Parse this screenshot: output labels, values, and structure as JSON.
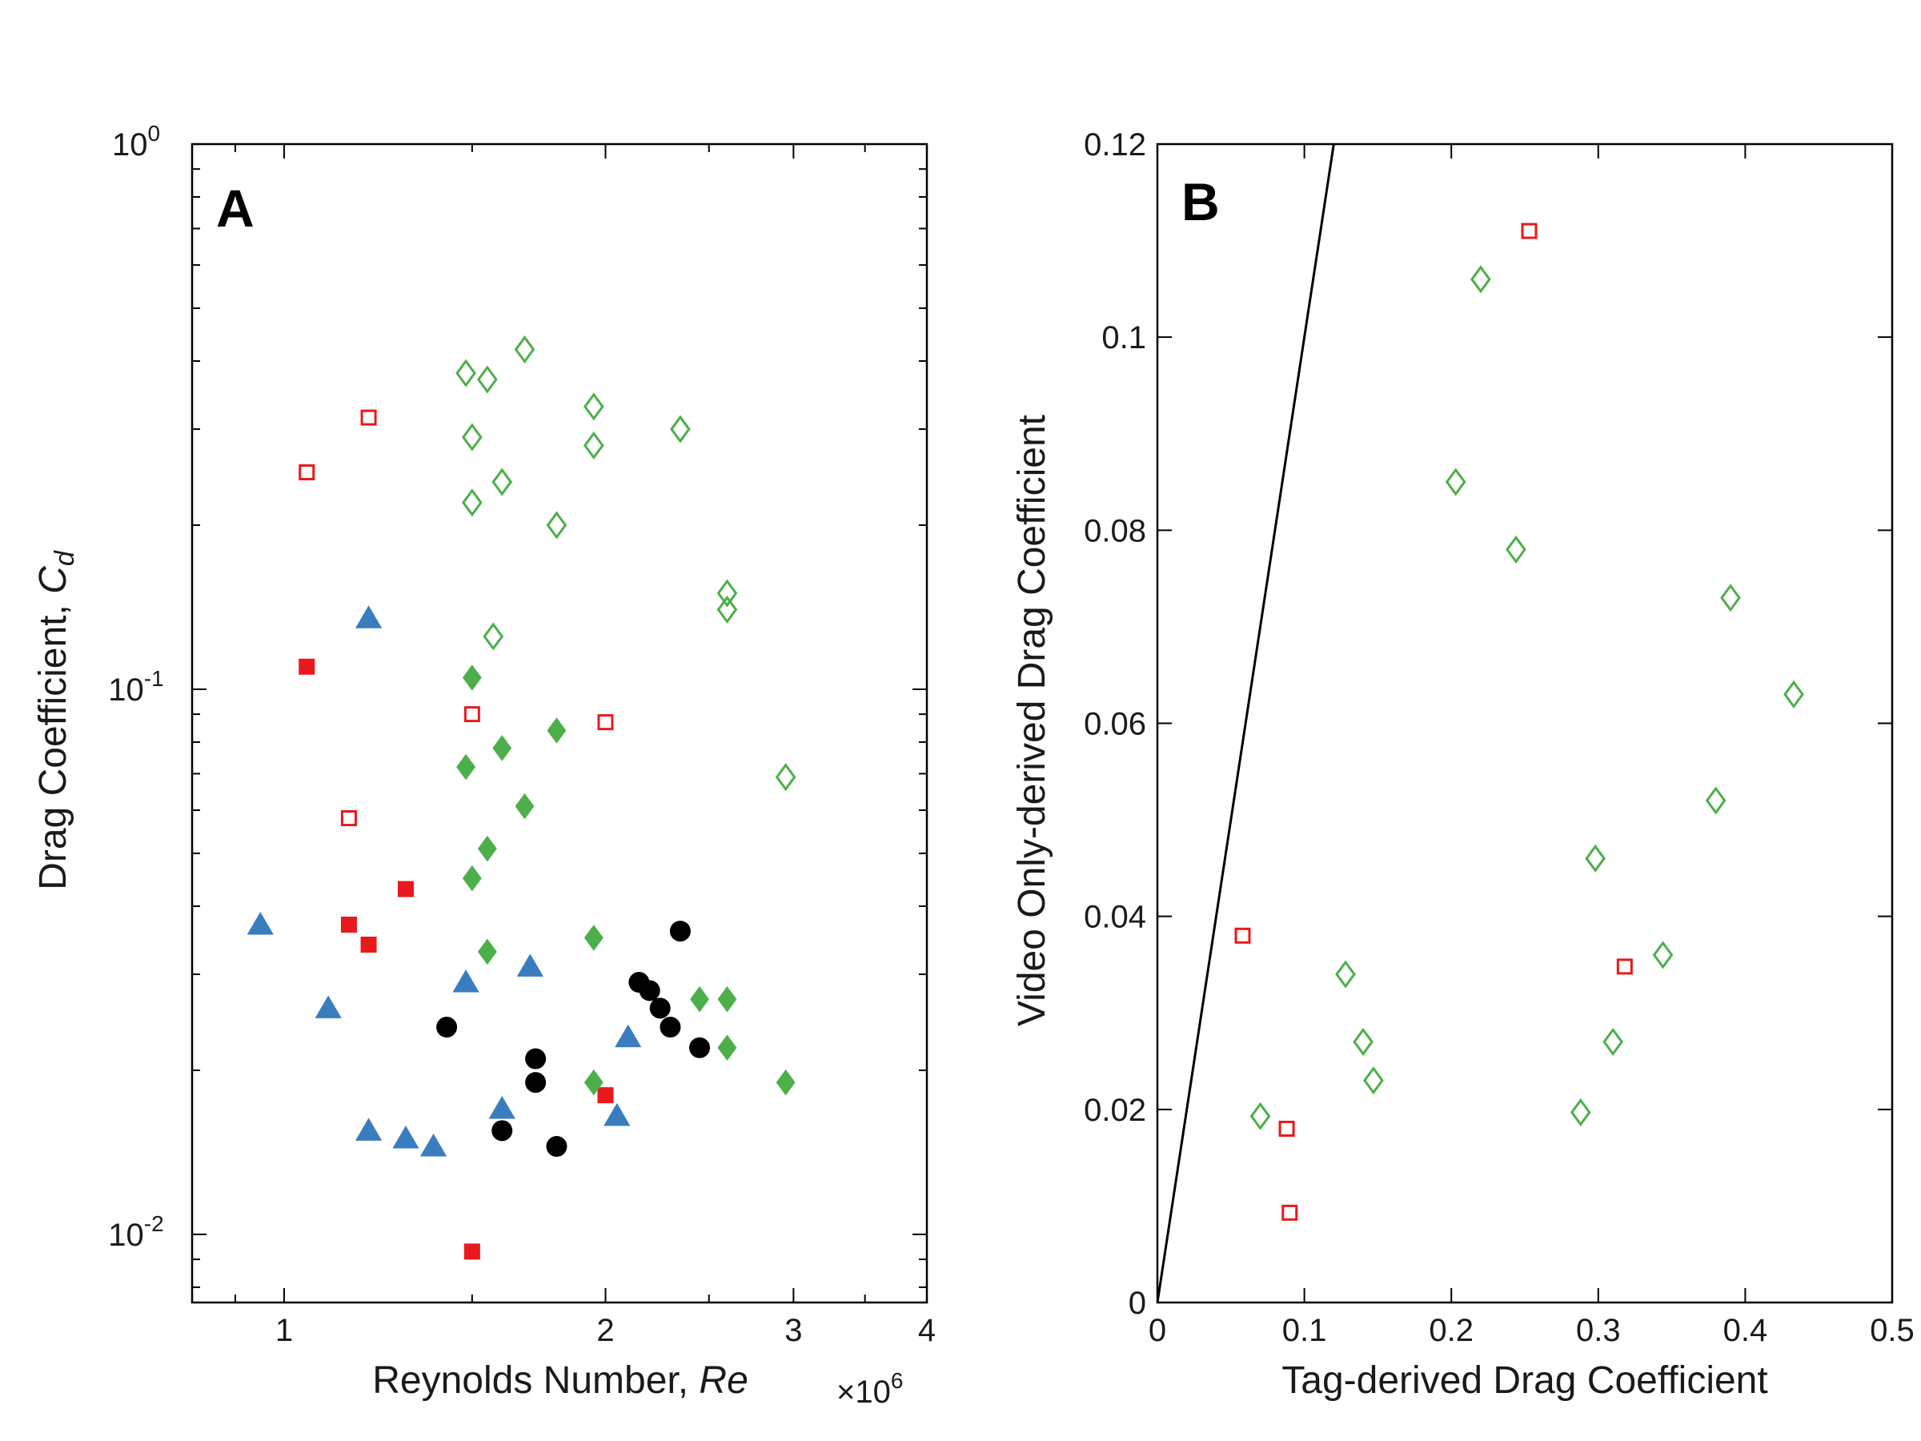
{
  "chart_data": [
    {
      "panel": "A",
      "type": "scatter",
      "xlabel": "Reynolds Number, ",
      "xlabel_var": "Re",
      "x_multiplier": "×10",
      "x_multiplier_exp": "6",
      "ylabel": "Drag Coefficient, ",
      "ylabel_var": "C",
      "ylabel_sub": "d",
      "xscale": "log",
      "yscale": "log",
      "xlim": [
        0.82,
        4
      ],
      "ylim": [
        0.0075,
        1
      ],
      "x_ticks": [
        1,
        2,
        3,
        4
      ],
      "x_tick_labels": [
        "1",
        "2",
        "3",
        "4"
      ],
      "y_ticks": [
        0.01,
        0.1,
        1
      ],
      "y_tick_labels": [
        {
          "base": "10",
          "exp": "-2"
        },
        {
          "base": "10",
          "exp": "-1"
        },
        {
          "base": "10",
          "exp": "0"
        }
      ],
      "grid": false,
      "colors": {
        "red": "#e8191c",
        "green": "#4daf4a",
        "blue": "#3a7dbf",
        "black": "#000000"
      },
      "series": [
        {
          "marker": "square-open",
          "color": "#e8191c",
          "points": [
            [
              1.05,
              0.25
            ],
            [
              1.2,
              0.315
            ],
            [
              1.5,
              0.09
            ],
            [
              1.15,
              0.058
            ],
            [
              2.0,
              0.087
            ]
          ]
        },
        {
          "marker": "square-filled",
          "color": "#e8191c",
          "points": [
            [
              1.05,
              0.11
            ],
            [
              1.3,
              0.043
            ],
            [
              1.15,
              0.037
            ],
            [
              1.2,
              0.034
            ],
            [
              2.0,
              0.018
            ],
            [
              1.5,
              0.0093
            ]
          ]
        },
        {
          "marker": "diamond-open",
          "color": "#4daf4a",
          "points": [
            [
              1.48,
              0.38
            ],
            [
              1.55,
              0.37
            ],
            [
              1.68,
              0.42
            ],
            [
              1.95,
              0.33
            ],
            [
              1.5,
              0.29
            ],
            [
              1.95,
              0.28
            ],
            [
              2.35,
              0.3
            ],
            [
              1.6,
              0.24
            ],
            [
              1.5,
              0.22
            ],
            [
              1.8,
              0.2
            ],
            [
              2.6,
              0.15
            ],
            [
              2.6,
              0.14
            ],
            [
              1.57,
              0.125
            ],
            [
              2.95,
              0.069
            ]
          ]
        },
        {
          "marker": "diamond-filled",
          "color": "#4daf4a",
          "points": [
            [
              1.5,
              0.105
            ],
            [
              1.8,
              0.084
            ],
            [
              1.6,
              0.078
            ],
            [
              1.48,
              0.072
            ],
            [
              1.68,
              0.061
            ],
            [
              1.55,
              0.051
            ],
            [
              1.5,
              0.045
            ],
            [
              1.95,
              0.035
            ],
            [
              1.55,
              0.033
            ],
            [
              2.45,
              0.027
            ],
            [
              2.6,
              0.027
            ],
            [
              2.6,
              0.022
            ],
            [
              1.95,
              0.019
            ],
            [
              2.95,
              0.019
            ]
          ]
        },
        {
          "marker": "triangle-filled",
          "color": "#3a7dbf",
          "points": [
            [
              1.2,
              0.135
            ],
            [
              0.95,
              0.037
            ],
            [
              1.1,
              0.026
            ],
            [
              1.48,
              0.029
            ],
            [
              1.7,
              0.031
            ],
            [
              2.1,
              0.023
            ],
            [
              1.6,
              0.017
            ],
            [
              2.05,
              0.0165
            ],
            [
              1.2,
              0.0155
            ],
            [
              1.3,
              0.015
            ],
            [
              1.38,
              0.0145
            ]
          ]
        },
        {
          "marker": "circle-filled",
          "color": "#000000",
          "points": [
            [
              2.35,
              0.036
            ],
            [
              2.15,
              0.029
            ],
            [
              2.2,
              0.028
            ],
            [
              2.25,
              0.026
            ],
            [
              1.42,
              0.024
            ],
            [
              2.3,
              0.024
            ],
            [
              2.45,
              0.022
            ],
            [
              1.72,
              0.021
            ],
            [
              1.72,
              0.019
            ],
            [
              1.6,
              0.0155
            ],
            [
              1.8,
              0.0145
            ]
          ]
        }
      ]
    },
    {
      "panel": "B",
      "type": "scatter",
      "xlabel": "Tag-derived Drag Coefficient",
      "ylabel": "Video Only-derived Drag Coefficient",
      "xlim": [
        0,
        0.5
      ],
      "ylim": [
        0,
        0.12
      ],
      "x_ticks": [
        0,
        0.1,
        0.2,
        0.3,
        0.4,
        0.5
      ],
      "x_tick_labels": [
        "0",
        "0.1",
        "0.2",
        "0.3",
        "0.4",
        "0.5"
      ],
      "y_ticks": [
        0,
        0.02,
        0.04,
        0.06,
        0.08,
        0.1,
        0.12
      ],
      "y_tick_labels": [
        "0",
        "0.02",
        "0.04",
        "0.06",
        "0.08",
        "0.1",
        "0.12"
      ],
      "grid": false,
      "reference_line": {
        "points": [
          [
            0,
            0
          ],
          [
            0.12,
            0.12
          ]
        ],
        "color": "#000000"
      },
      "series": [
        {
          "marker": "square-open",
          "color": "#e8191c",
          "points": [
            [
              0.253,
              0.111
            ],
            [
              0.058,
              0.038
            ],
            [
              0.088,
              0.018
            ],
            [
              0.09,
              0.0093
            ],
            [
              0.318,
              0.0348
            ]
          ]
        },
        {
          "marker": "diamond-open",
          "color": "#4daf4a",
          "points": [
            [
              0.22,
              0.106
            ],
            [
              0.203,
              0.085
            ],
            [
              0.244,
              0.078
            ],
            [
              0.39,
              0.073
            ],
            [
              0.433,
              0.063
            ],
            [
              0.38,
              0.052
            ],
            [
              0.298,
              0.046
            ],
            [
              0.344,
              0.036
            ],
            [
              0.128,
              0.034
            ],
            [
              0.14,
              0.027
            ],
            [
              0.31,
              0.027
            ],
            [
              0.147,
              0.023
            ],
            [
              0.07,
              0.0193
            ],
            [
              0.288,
              0.0197
            ]
          ]
        }
      ]
    }
  ],
  "panel_letters": {
    "a": "A",
    "b": "B"
  }
}
